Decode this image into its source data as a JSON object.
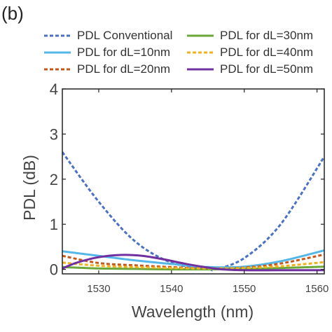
{
  "panel_label": "(b)",
  "colors": {
    "conventional": "#4a72c4",
    "dl10": "#55b7e8",
    "dl20": "#c5591c",
    "dl30": "#6aa83a",
    "dl40": "#f2b21b",
    "dl50": "#7030a0"
  },
  "chart_data": {
    "type": "line",
    "title": "",
    "xlabel": "Wavelength (nm)",
    "ylabel": "PDL (dB)",
    "xlim": [
      1525,
      1561
    ],
    "ylim": [
      -0.1,
      4
    ],
    "xticks": [
      1530,
      1540,
      1550,
      1560
    ],
    "yticks": [
      0,
      1,
      2,
      3,
      4
    ],
    "grid": false,
    "legend_position": "top",
    "series": [
      {
        "name": "PDL Conventional",
        "color_key": "conventional",
        "dash": "dashed",
        "x": [
          1525,
          1530,
          1535,
          1540,
          1545,
          1546,
          1550,
          1555,
          1561
        ],
        "y": [
          2.6,
          1.5,
          0.62,
          0.15,
          0.01,
          0.0,
          0.25,
          1.0,
          2.5
        ]
      },
      {
        "name": "PDL for dL=10nm",
        "color_key": "dl10",
        "dash": "solid",
        "x": [
          1525,
          1530,
          1535,
          1540,
          1545,
          1550,
          1555,
          1561
        ],
        "y": [
          0.4,
          0.3,
          0.2,
          0.12,
          0.05,
          0.06,
          0.18,
          0.42
        ]
      },
      {
        "name": "PDL for dL=20nm",
        "color_key": "dl20",
        "dash": "dashed",
        "x": [
          1525,
          1530,
          1535,
          1540,
          1545,
          1550,
          1555,
          1561
        ],
        "y": [
          0.3,
          0.14,
          0.09,
          0.05,
          0.02,
          0.04,
          0.13,
          0.33
        ]
      },
      {
        "name": "PDL for dL=30nm",
        "color_key": "dl30",
        "dash": "solid",
        "x": [
          1525,
          1530,
          1535,
          1540,
          1545,
          1550,
          1555,
          1561
        ],
        "y": [
          0.05,
          0.02,
          0.01,
          0.0,
          0.0,
          0.01,
          0.03,
          0.06
        ]
      },
      {
        "name": "PDL for dL=40nm",
        "color_key": "dl40",
        "dash": "dashed",
        "x": [
          1525,
          1530,
          1535,
          1540,
          1545,
          1550,
          1555,
          1561
        ],
        "y": [
          0.15,
          0.08,
          0.05,
          0.03,
          0.02,
          0.03,
          0.07,
          0.16
        ]
      },
      {
        "name": "PDL for dL=50nm",
        "color_key": "dl50",
        "dash": "solid",
        "x": [
          1525,
          1527,
          1530,
          1533,
          1536,
          1539,
          1542,
          1545,
          1547,
          1550,
          1555,
          1561
        ],
        "y": [
          0.02,
          0.15,
          0.27,
          0.32,
          0.3,
          0.22,
          0.12,
          0.04,
          0.0,
          -0.02,
          -0.02,
          -0.02
        ]
      }
    ]
  }
}
